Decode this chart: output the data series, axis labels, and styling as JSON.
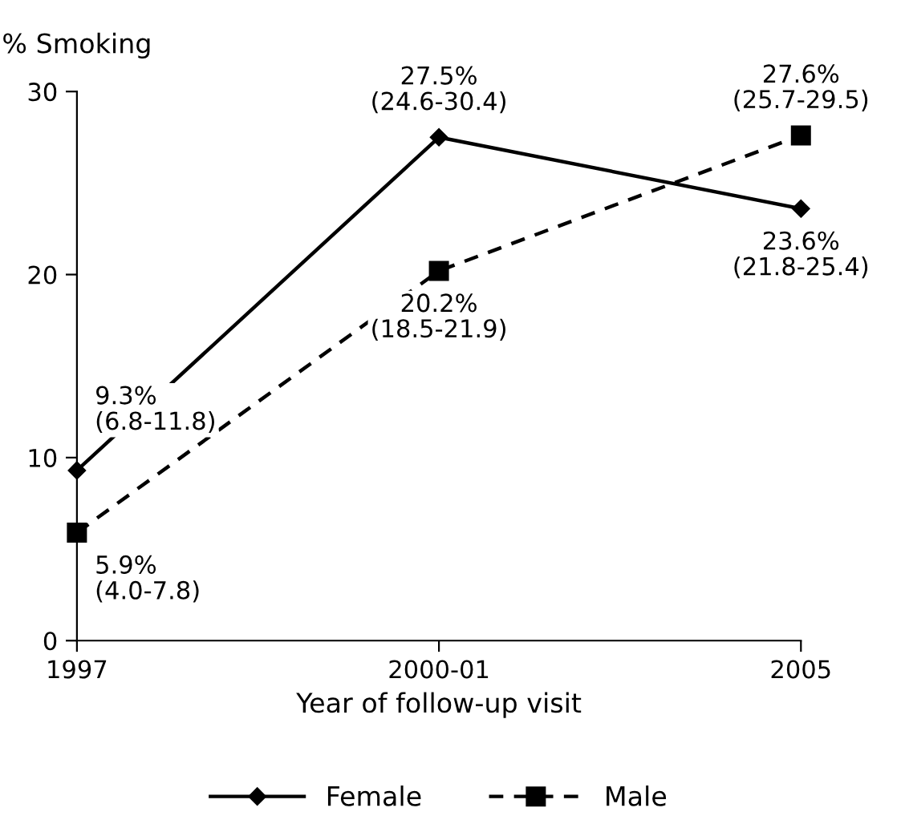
{
  "chart_data": {
    "type": "line",
    "ylabel": "% Smoking",
    "xlabel": "Year of follow-up visit",
    "categories": [
      "1997",
      "2000-01",
      "2005"
    ],
    "series": [
      {
        "name": "Female",
        "color": "#000000",
        "values": [
          9.3,
          27.5,
          23.6
        ],
        "marker": "diamond",
        "line_style": "solid",
        "value_labels": [
          "9.3%\n(6.8-11.8)",
          "27.5%\n(24.6-30.4)",
          "23.6%\n(21.8-25.4)"
        ]
      },
      {
        "name": "Male",
        "color": "#000000",
        "values": [
          5.9,
          20.2,
          27.6
        ],
        "marker": "square",
        "line_style": "dashed",
        "value_labels": [
          "5.9%\n(4.0-7.8)",
          "20.2%\n(18.5-21.9)",
          "27.6%\n(25.7-29.5)"
        ]
      }
    ],
    "ylim": [
      0,
      30
    ],
    "yticks": [
      0,
      10,
      20,
      30
    ],
    "grid": false,
    "legend": "bottom"
  }
}
